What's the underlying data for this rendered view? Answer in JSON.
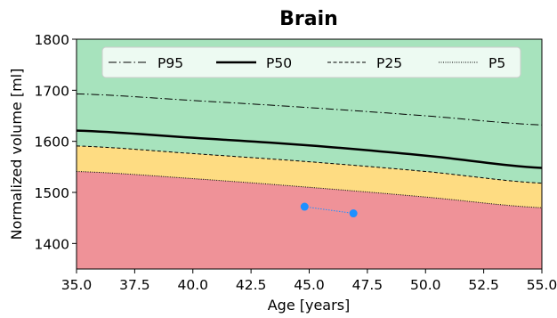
{
  "chart_data": {
    "type": "line",
    "title": "Brain",
    "xlabel": "Age [years]",
    "ylabel": "Normalized volume [ml]",
    "xlim": [
      35.0,
      55.0
    ],
    "ylim": [
      1350,
      1800
    ],
    "x_ticks": [
      "35.0",
      "37.5",
      "40.0",
      "42.5",
      "45.0",
      "47.5",
      "50.0",
      "52.5",
      "55.0"
    ],
    "y_ticks": [
      "1400",
      "1500",
      "1600",
      "1700",
      "1800"
    ],
    "legend_position": "top",
    "series": [
      {
        "name": "P95",
        "style": "dashdot",
        "x": [
          35,
          40,
          45,
          50,
          55
        ],
        "values": [
          1693,
          1680,
          1666,
          1650,
          1632
        ]
      },
      {
        "name": "P50",
        "style": "solid",
        "x": [
          35,
          40,
          45,
          50,
          55
        ],
        "values": [
          1621,
          1607,
          1592,
          1572,
          1548
        ]
      },
      {
        "name": "P25",
        "style": "dashed",
        "x": [
          35,
          40,
          45,
          50,
          55
        ],
        "values": [
          1591,
          1576,
          1560,
          1541,
          1518
        ]
      },
      {
        "name": "P5",
        "style": "dotted",
        "x": [
          35,
          40,
          45,
          50,
          55
        ],
        "values": [
          1541,
          1527,
          1510,
          1491,
          1470
        ]
      }
    ],
    "observations": {
      "x": [
        44.8,
        46.9
      ],
      "values": [
        1472,
        1459
      ]
    },
    "colors": {
      "band_high": "#a7e3bd",
      "band_mid": "#fedc82",
      "band_low": "#ef9298",
      "observation": "#1e90ff"
    }
  }
}
